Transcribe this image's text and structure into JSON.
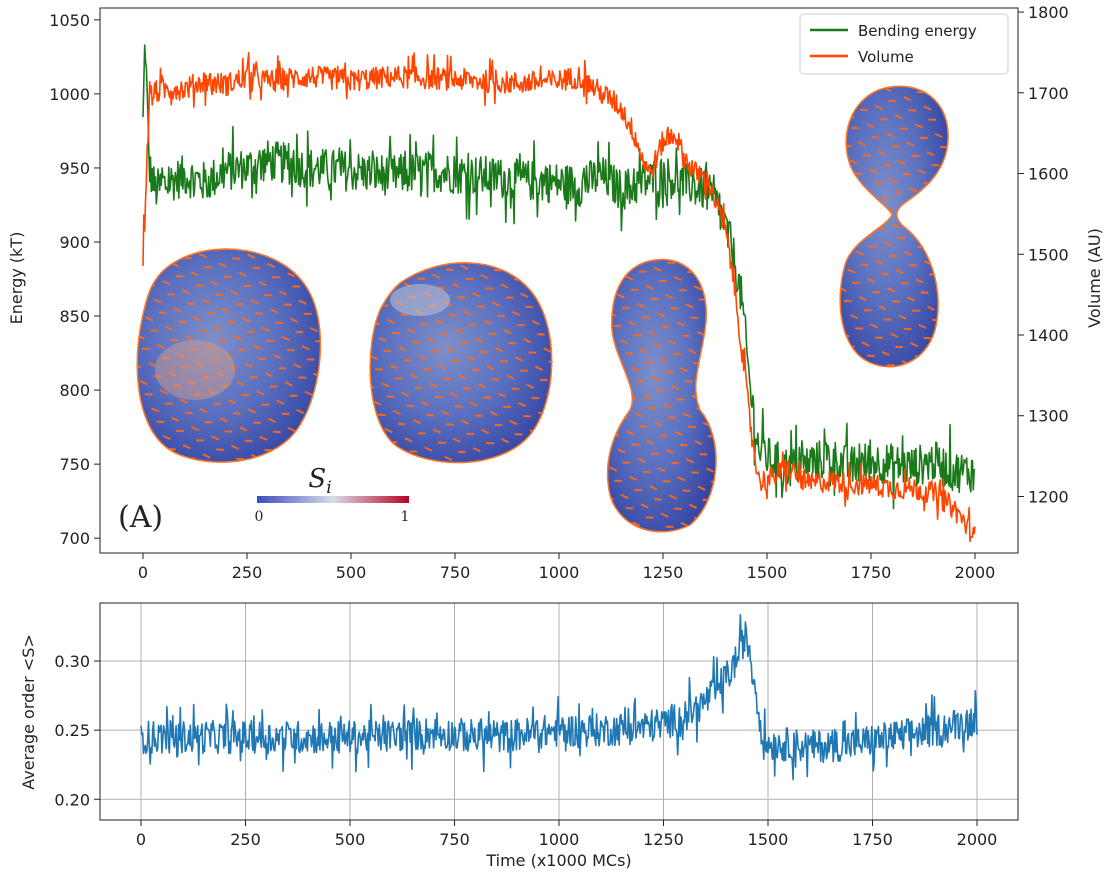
{
  "chart_data": [
    {
      "type": "line",
      "panel_label": "(A)",
      "xlim": [
        0,
        2000
      ],
      "x_ticks": [
        "0",
        "250",
        "500",
        "750",
        "1000",
        "1250",
        "1500",
        "1750",
        "2000"
      ],
      "ylabel": "Energy (kT)",
      "ylim": [
        690,
        1058
      ],
      "y_ticks": [
        "700",
        "750",
        "800",
        "850",
        "900",
        "950",
        "1000",
        "1050"
      ],
      "ylabel_right": "Volume (AU)",
      "ylim_right": [
        1130,
        1805
      ],
      "y_ticks_right": [
        "1200",
        "1300",
        "1400",
        "1500",
        "1600",
        "1700",
        "1800"
      ],
      "legend_position": "top-right",
      "series": [
        {
          "name": "Bending energy",
          "axis": "left",
          "color": "#1a7a1a",
          "x": [
            0,
            5,
            15,
            30,
            60,
            100,
            150,
            200,
            250,
            300,
            400,
            500,
            600,
            700,
            800,
            900,
            1000,
            1050,
            1100,
            1150,
            1200,
            1250,
            1300,
            1350,
            1380,
            1400,
            1420,
            1440,
            1460,
            1480,
            1500,
            1550,
            1600,
            1650,
            1700,
            1750,
            1800,
            1850,
            1900,
            1950,
            2000
          ],
          "values": [
            980,
            1040,
            950,
            935,
            940,
            945,
            940,
            948,
            950,
            955,
            950,
            948,
            945,
            948,
            945,
            942,
            940,
            938,
            945,
            935,
            940,
            945,
            940,
            935,
            925,
            910,
            890,
            860,
            800,
            760,
            755,
            748,
            750,
            755,
            748,
            752,
            750,
            748,
            752,
            745,
            745
          ],
          "noise": 14
        },
        {
          "name": "Volume",
          "axis": "right",
          "color": "#ff4500",
          "x": [
            0,
            5,
            15,
            30,
            60,
            100,
            150,
            200,
            250,
            300,
            400,
            500,
            600,
            700,
            800,
            900,
            1000,
            1050,
            1100,
            1130,
            1150,
            1180,
            1200,
            1220,
            1250,
            1280,
            1300,
            1330,
            1360,
            1380,
            1400,
            1420,
            1440,
            1460,
            1480,
            1500,
            1550,
            1600,
            1650,
            1700,
            1750,
            1800,
            1850,
            1900,
            1950,
            2000
          ],
          "values": [
            1500,
            1560,
            1690,
            1700,
            1705,
            1705,
            1715,
            1710,
            1720,
            1715,
            1720,
            1715,
            1720,
            1718,
            1715,
            1712,
            1715,
            1720,
            1700,
            1690,
            1680,
            1650,
            1620,
            1600,
            1640,
            1650,
            1620,
            1600,
            1590,
            1560,
            1530,
            1470,
            1380,
            1290,
            1220,
            1220,
            1235,
            1215,
            1220,
            1215,
            1215,
            1210,
            1210,
            1205,
            1185,
            1150
          ],
          "noise": 14
        }
      ],
      "colorbar": {
        "title": "S",
        "title_subscript": "i",
        "min_label": "0",
        "max_label": "1",
        "colors": [
          "#3b4cc0",
          "#c8d4e8",
          "#b40426"
        ]
      }
    },
    {
      "type": "line",
      "xlabel": "Time (x1000 MCs)",
      "xlim": [
        -30,
        2030
      ],
      "x_ticks": [
        "0",
        "250",
        "500",
        "750",
        "1000",
        "1250",
        "1500",
        "1750",
        "2000"
      ],
      "ylabel": "Average order <S>",
      "ylim": [
        0.185,
        0.342
      ],
      "y_ticks": [
        "0.20",
        "0.25",
        "0.30"
      ],
      "grid": true,
      "series": [
        {
          "name": "Average order",
          "color": "#1f77b4",
          "x": [
            0,
            100,
            250,
            400,
            550,
            700,
            850,
            1000,
            1100,
            1200,
            1250,
            1300,
            1340,
            1380,
            1410,
            1430,
            1445,
            1455,
            1470,
            1490,
            1510,
            1550,
            1600,
            1700,
            1800,
            1900,
            2000
          ],
          "values": [
            0.245,
            0.245,
            0.245,
            0.245,
            0.245,
            0.248,
            0.245,
            0.25,
            0.25,
            0.252,
            0.255,
            0.26,
            0.268,
            0.28,
            0.292,
            0.305,
            0.318,
            0.31,
            0.28,
            0.24,
            0.24,
            0.24,
            0.238,
            0.24,
            0.245,
            0.25,
            0.258
          ],
          "noise": 0.012
        }
      ]
    }
  ]
}
